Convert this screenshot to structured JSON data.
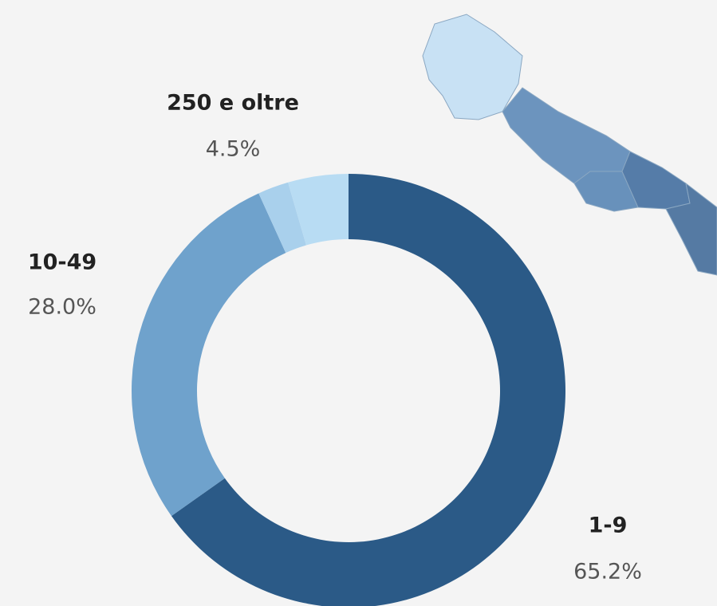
{
  "chart_data": {
    "type": "donut",
    "categories": [
      "1-9",
      "10-49",
      null,
      "250 e oltre"
    ],
    "values": [
      65.2,
      28.0,
      2.3,
      4.5
    ],
    "value_labels": [
      "65.2%",
      "28.0%",
      null,
      "4.5%"
    ],
    "colors": [
      "#2b5a87",
      "#6fa2cc",
      "#a9d0ec",
      "#b8dcf3"
    ]
  }
}
